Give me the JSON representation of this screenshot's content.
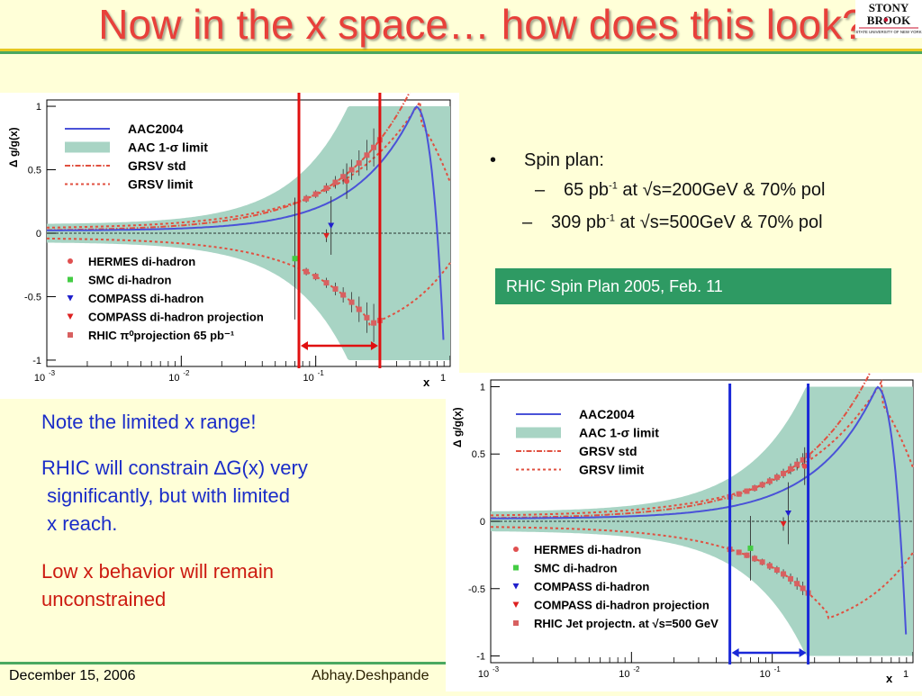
{
  "slide": {
    "title": "Now in the x space… how does this look?",
    "logo": {
      "line1": "STONY",
      "line2": "BROOK",
      "sub": "STATE UNIVERSITY OF NEW YORK",
      "icon": "stony-brook-logo"
    },
    "bullets": {
      "main": "Spin plan:",
      "sub": [
        {
          "a": "65 pb",
          "sup": "-1",
          "b": " at √s=200GeV & 70% pol"
        },
        {
          "a": "309 pb",
          "sup": "-1",
          "b": " at √s=500GeV & 70% pol"
        }
      ]
    },
    "box_label": "RHIC Spin Plan 2005, Feb. 11",
    "notes": {
      "n1": "Note the limited x range!",
      "n2a": "RHIC will constrain ∆G(x) very",
      "n2b": " significantly, but with limited",
      "n2c": " x reach.",
      "n3a": "Low x behavior will remain",
      "n3b": "unconstrained"
    },
    "footer": {
      "date": "December 15, 2006",
      "author": "Abhay.Deshpande"
    },
    "colors": {
      "title": "#e8403a",
      "background": "#ffffd8",
      "box": "#2e9a63",
      "note_blue": "#1a2cc8",
      "note_red": "#cc1a10"
    }
  },
  "chart_data": [
    {
      "type": "line",
      "ylabel": "Δ g/g(x)",
      "xlabel": "x",
      "xscale": "log",
      "xlim": [
        0.001,
        1
      ],
      "ylim": [
        -1.05,
        1.05
      ],
      "yticks": [
        "1",
        "0.5",
        "0",
        "-0.5",
        "-1"
      ],
      "xticks": [
        {
          "base": "10",
          "exp": "-3"
        },
        {
          "base": "10",
          "exp": "-2"
        },
        {
          "base": "10",
          "exp": "-1"
        },
        {
          "base": "1",
          "exp": ""
        }
      ],
      "legend_top": [
        {
          "label": "AAC2004",
          "style": "line",
          "color": "#4a52d8"
        },
        {
          "label": "AAC 1-σ limit",
          "style": "band",
          "color": "#a8d4c4"
        },
        {
          "label": "GRSV std",
          "style": "dashdot",
          "color": "#e05040"
        },
        {
          "label": "GRSV limit",
          "style": "dash",
          "color": "#e05040"
        }
      ],
      "legend_bottom": [
        {
          "label": "HERMES di-hadron",
          "marker": "circle",
          "color": "#e05050"
        },
        {
          "label": "SMC di-hadron",
          "marker": "square",
          "color": "#44cc44"
        },
        {
          "label": "COMPASS di-hadron",
          "marker": "tri-down",
          "color": "#2020cc"
        },
        {
          "label": "COMPASS di-hadron projection",
          "marker": "tri-down",
          "color": "#dd2020"
        },
        {
          "label": "RHIC π⁰projection 65 pb⁻¹",
          "marker": "square",
          "color": "#d86060"
        }
      ],
      "points": {
        "hermes": {
          "x": 0.17,
          "y": 0.41,
          "err": 0.14
        },
        "smc": {
          "x": 0.07,
          "y": -0.2,
          "err": 0.48
        },
        "compass": {
          "x": 0.13,
          "y": 0.06,
          "err": 0.23
        },
        "compass_proj": {
          "x": 0.12,
          "y": -0.02,
          "err": 0.05
        }
      },
      "rhic_x": [
        0.085,
        0.1,
        0.12,
        0.14,
        0.16,
        0.185,
        0.21,
        0.24,
        0.27,
        0.3
      ],
      "rhic_err": [
        0.03,
        0.03,
        0.04,
        0.05,
        0.06,
        0.08,
        0.1,
        0.12,
        0.15,
        0.18
      ],
      "range": {
        "x_min": 0.075,
        "x_max": 0.3,
        "color": "#e01010"
      }
    },
    {
      "type": "line",
      "ylabel": "Δ g/g(x)",
      "xlabel": "x",
      "xscale": "log",
      "xlim": [
        0.001,
        1
      ],
      "ylim": [
        -1.05,
        1.05
      ],
      "yticks": [
        "1",
        "0.5",
        "0",
        "-0.5",
        "-1"
      ],
      "xticks": [
        {
          "base": "10",
          "exp": "-3"
        },
        {
          "base": "10",
          "exp": "-2"
        },
        {
          "base": "10",
          "exp": "-1"
        },
        {
          "base": "1",
          "exp": ""
        }
      ],
      "legend_top": [
        {
          "label": "AAC2004",
          "style": "line",
          "color": "#4a52d8"
        },
        {
          "label": "AAC 1-σ limit",
          "style": "band",
          "color": "#a8d4c4"
        },
        {
          "label": "GRSV std",
          "style": "dashdot",
          "color": "#e05040"
        },
        {
          "label": "GRSV limit",
          "style": "dash",
          "color": "#e05040"
        }
      ],
      "legend_bottom": [
        {
          "label": "HERMES di-hadron",
          "marker": "circle",
          "color": "#e05050"
        },
        {
          "label": "SMC di-hadron",
          "marker": "square",
          "color": "#44cc44"
        },
        {
          "label": "COMPASS di-hadron",
          "marker": "tri-down",
          "color": "#2020cc"
        },
        {
          "label": "COMPASS di-hadron projection",
          "marker": "tri-down",
          "color": "#dd2020"
        },
        {
          "label": "RHIC Jet projectn. at √s=500 GeV",
          "marker": "square",
          "color": "#d86060"
        }
      ],
      "points": {
        "hermes": {
          "x": 0.17,
          "y": 0.41,
          "err": 0.14
        },
        "smc": {
          "x": 0.07,
          "y": -0.2,
          "err": 0.24
        },
        "compass": {
          "x": 0.13,
          "y": 0.06,
          "err": 0.23
        },
        "compass_proj": {
          "x": 0.12,
          "y": -0.02,
          "err": 0.05
        }
      },
      "rhic_x": [
        0.05,
        0.058,
        0.066,
        0.075,
        0.085,
        0.096,
        0.108,
        0.12,
        0.135,
        0.15,
        0.165,
        0.18
      ],
      "rhic_err": [
        0.02,
        0.02,
        0.02,
        0.025,
        0.025,
        0.03,
        0.03,
        0.035,
        0.04,
        0.045,
        0.05,
        0.06
      ],
      "range": {
        "x_min": 0.05,
        "x_max": 0.18,
        "color": "#1a28d8"
      }
    }
  ]
}
